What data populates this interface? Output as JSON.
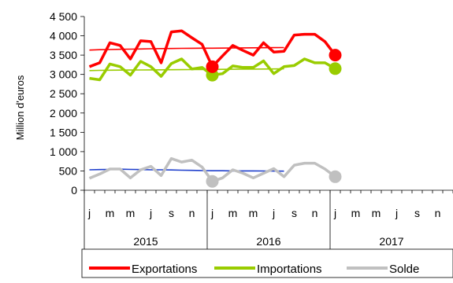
{
  "chart_data": {
    "type": "line",
    "ylabel": "Million d'euros",
    "ylim": [
      0,
      4500
    ],
    "yticks": [
      "0",
      "500",
      "1 000",
      "1 500",
      "2 000",
      "2 500",
      "3 000",
      "3 500",
      "4 000",
      "4 500"
    ],
    "ytick_values": [
      0,
      500,
      1000,
      1500,
      2000,
      2500,
      3000,
      3500,
      4000,
      4500
    ],
    "month_labels": [
      "j",
      "",
      "m",
      "",
      "m",
      "",
      "j",
      "",
      "s",
      "",
      "n",
      "",
      "j",
      "",
      "m",
      "",
      "m",
      "",
      "j",
      "",
      "s",
      "",
      "n",
      "",
      "j",
      "",
      "m",
      "",
      "m",
      "",
      "j",
      "",
      "s",
      "",
      "n",
      ""
    ],
    "years": [
      "2015",
      "2016",
      "2017"
    ],
    "grid": false,
    "legend_position": "bottom",
    "series": [
      {
        "name": "Exportations",
        "color": "#ff0000",
        "values": [
          3200,
          3300,
          3820,
          3750,
          3400,
          3870,
          3850,
          3300,
          4100,
          4130,
          3950,
          3780,
          3200,
          3480,
          3750,
          3620,
          3500,
          3820,
          3580,
          3600,
          4020,
          4040,
          4040,
          3850,
          3500
        ],
        "trend": [
          3630,
          3640,
          3645,
          3650,
          3655,
          3660,
          3665,
          3670,
          3672,
          3675,
          3678,
          3680,
          3680,
          3682,
          3685,
          3688,
          3690,
          3692,
          3694,
          3696
        ]
      },
      {
        "name": "Importations",
        "color": "#99cc00",
        "values": [
          2900,
          2860,
          3270,
          3200,
          2980,
          3340,
          3200,
          2950,
          3280,
          3400,
          3140,
          3180,
          2980,
          3020,
          3220,
          3180,
          3180,
          3350,
          3020,
          3200,
          3230,
          3400,
          3300,
          3300,
          3150
        ],
        "trend": [
          3100,
          3105,
          3110,
          3112,
          3114,
          3116,
          3118,
          3120,
          3122,
          3124,
          3126,
          3128,
          3130,
          3132,
          3134,
          3136,
          3138,
          3140,
          3142,
          3144
        ]
      },
      {
        "name": "Solde",
        "color": "#c0c0c0",
        "values": [
          310,
          420,
          550,
          550,
          320,
          530,
          620,
          380,
          820,
          730,
          780,
          600,
          230,
          320,
          530,
          440,
          320,
          440,
          560,
          350,
          650,
          700,
          700,
          550,
          350
        ],
        "trend": [
          530,
          535,
          540,
          545,
          540,
          535,
          530,
          530,
          525,
          520,
          515,
          510,
          505,
          505,
          500,
          500,
          500,
          498,
          496,
          495
        ]
      }
    ]
  }
}
